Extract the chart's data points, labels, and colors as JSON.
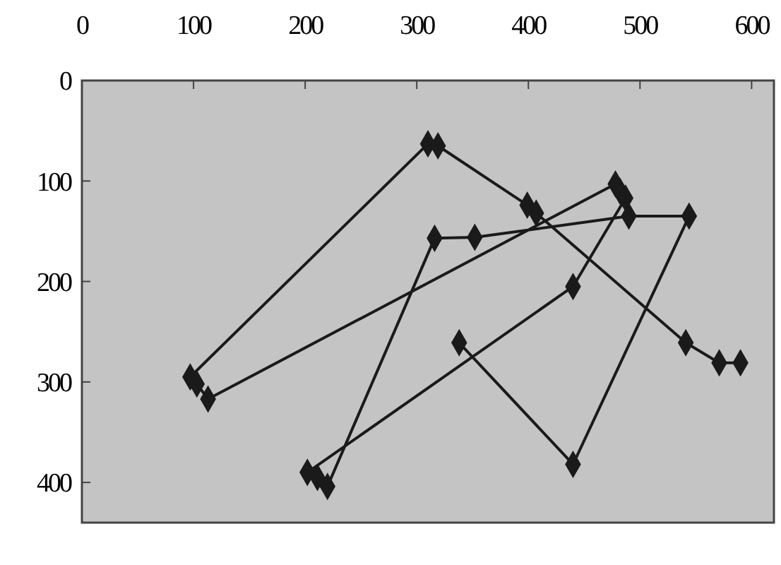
{
  "chart_data": {
    "type": "line",
    "x": [
      590,
      571,
      541,
      407,
      399,
      319,
      310,
      97,
      103,
      113,
      478,
      482,
      487,
      440,
      202,
      211,
      220,
      316,
      352,
      490,
      544,
      440,
      338
    ],
    "values": [
      281,
      281,
      261,
      132,
      124,
      65,
      63,
      295,
      302,
      317,
      103,
      110,
      117,
      205,
      390,
      395,
      404,
      157,
      156,
      135,
      135,
      382,
      261
    ],
    "color": "#1a1a1a",
    "marker": "diamond",
    "line_style": "solid",
    "grid": false,
    "xlim": [
      0,
      620
    ],
    "xticks": [
      0,
      100,
      200,
      300,
      400,
      500,
      600
    ],
    "ylim": [
      440,
      0
    ],
    "yticks": [
      0,
      100,
      200,
      300,
      400
    ]
  }
}
